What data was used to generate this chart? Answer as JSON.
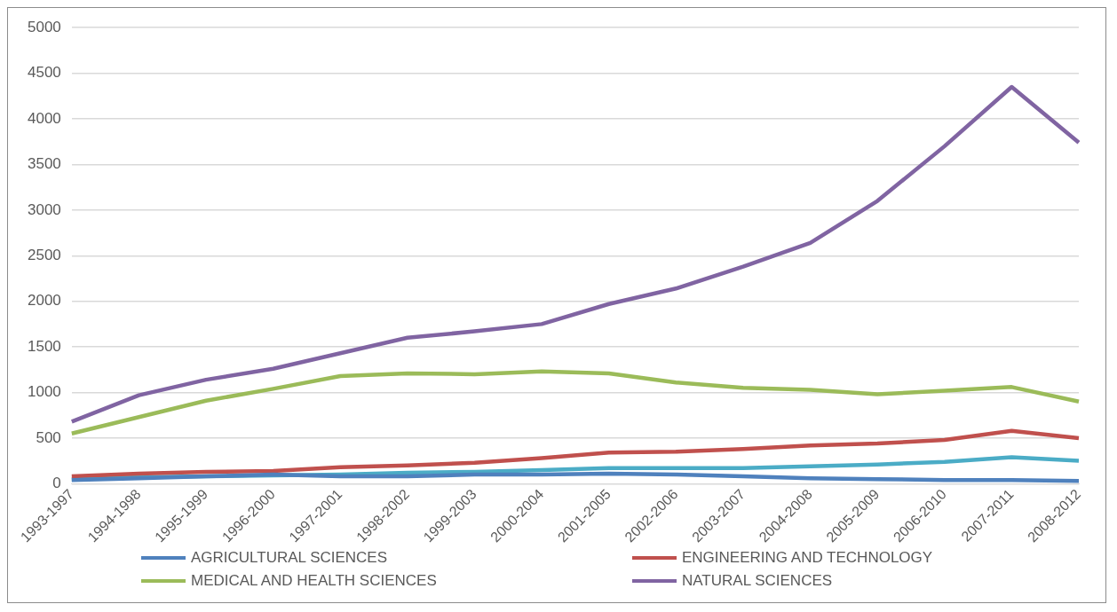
{
  "chart_data": {
    "type": "line",
    "categories": [
      "1993-1997",
      "1994-1998",
      "1995-1999",
      "1996-2000",
      "1997-2001",
      "1998-2002",
      "1999-2003",
      "2000-2004",
      "2001-2005",
      "2002-2006",
      "2003-2007",
      "2004-2008",
      "2005-2009",
      "2006-2010",
      "2007-2011",
      "2008-2012"
    ],
    "series": [
      {
        "name": "AGRICULTURAL SCIENCES",
        "color": "#4f81bd",
        "values": [
          40,
          60,
          80,
          100,
          80,
          80,
          100,
          100,
          110,
          100,
          80,
          60,
          50,
          40,
          40,
          30
        ]
      },
      {
        "name": "ENGINEERING AND TECHNOLOGY",
        "color": "#c0504d",
        "values": [
          80,
          110,
          130,
          140,
          180,
          200,
          230,
          280,
          340,
          350,
          380,
          420,
          440,
          480,
          580,
          500
        ]
      },
      {
        "name": "MEDICAL AND HEALTH SCIENCES",
        "color": "#9bbb59",
        "values": [
          550,
          730,
          910,
          1040,
          1180,
          1210,
          1200,
          1230,
          1210,
          1110,
          1050,
          1030,
          980,
          1020,
          1060,
          900
        ]
      },
      {
        "name": "NATURAL SCIENCES",
        "color": "#8064a2",
        "values": [
          680,
          970,
          1140,
          1260,
          1430,
          1600,
          1670,
          1750,
          1970,
          2140,
          2380,
          2640,
          3100,
          3700,
          4350,
          3740
        ]
      },
      {
        "color": "#4bacc6",
        "values": [
          50,
          70,
          80,
          90,
          100,
          120,
          130,
          150,
          170,
          170,
          170,
          190,
          210,
          240,
          290,
          250
        ]
      }
    ],
    "ylim": [
      0,
      5000
    ],
    "yticks": [
      0,
      500,
      1000,
      1500,
      2000,
      2500,
      3000,
      3500,
      4000,
      4500,
      5000
    ],
    "grid": "y",
    "legend": "bottom",
    "marker": "none",
    "line_style": "solid"
  }
}
